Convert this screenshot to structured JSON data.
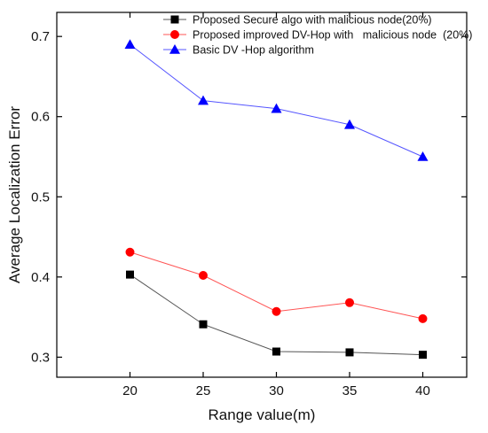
{
  "chart_data": {
    "type": "line",
    "title": "",
    "xlabel": "Range value(m)",
    "ylabel": "Average Localization Error",
    "x": [
      20,
      25,
      30,
      35,
      40
    ],
    "x_ticks": [
      "20",
      "25",
      "30",
      "35",
      "40"
    ],
    "xlim": [
      15,
      43
    ],
    "y_ticks": [
      "0.3",
      "0.4",
      "0.5",
      "0.6",
      "0.7"
    ],
    "ylim": [
      0.275,
      0.73
    ],
    "grid": false,
    "legend_position": "top-right",
    "series": [
      {
        "name": "Proposed Secure algo with malicious node(20%)",
        "values": [
          0.403,
          0.341,
          0.307,
          0.306,
          0.303
        ],
        "color": "#555555",
        "marker": "square",
        "marker_color": "#000000"
      },
      {
        "name": "Proposed improved DV-Hop with   malicious node  (20%)",
        "values": [
          0.431,
          0.402,
          0.357,
          0.368,
          0.348
        ],
        "color": "#ff5555",
        "marker": "circle",
        "marker_color": "#ff0000"
      },
      {
        "name": "Basic DV -Hop algorithm",
        "values": [
          0.69,
          0.62,
          0.61,
          0.59,
          0.55
        ],
        "color": "#5555ff",
        "marker": "triangle",
        "marker_color": "#0000ff"
      }
    ]
  }
}
